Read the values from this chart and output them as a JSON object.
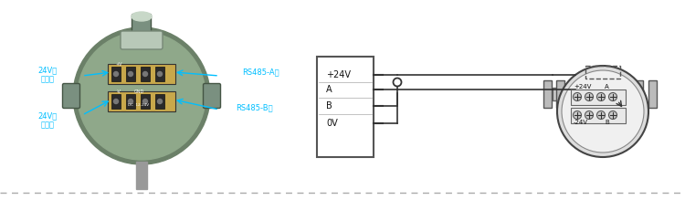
{
  "bg_color": "#ffffff",
  "cyan_color": "#00BFFF",
  "dark_gray": "#555555",
  "green_outer": "#6B8068",
  "green_inner": "#8FA88A",
  "connector_color": "#7A9080",
  "terminal_gold": "#C8A84B",
  "terminal_dark": "#2A2A2A",
  "box_color": "#555555",
  "wire_color": "#333333",
  "power_box_labels": [
    "+24V",
    "A",
    "B",
    "0V"
  ],
  "label_24v_pos": "24V电\n源正极",
  "label_24v_neg": "24V电\n源负极",
  "label_rs485a": "RS485-A极",
  "label_rs485b": "RS485-B极",
  "remote_label_p24": "+24V",
  "remote_label_a": "A",
  "remote_label_n24": "-24V",
  "remote_label_b": "B"
}
